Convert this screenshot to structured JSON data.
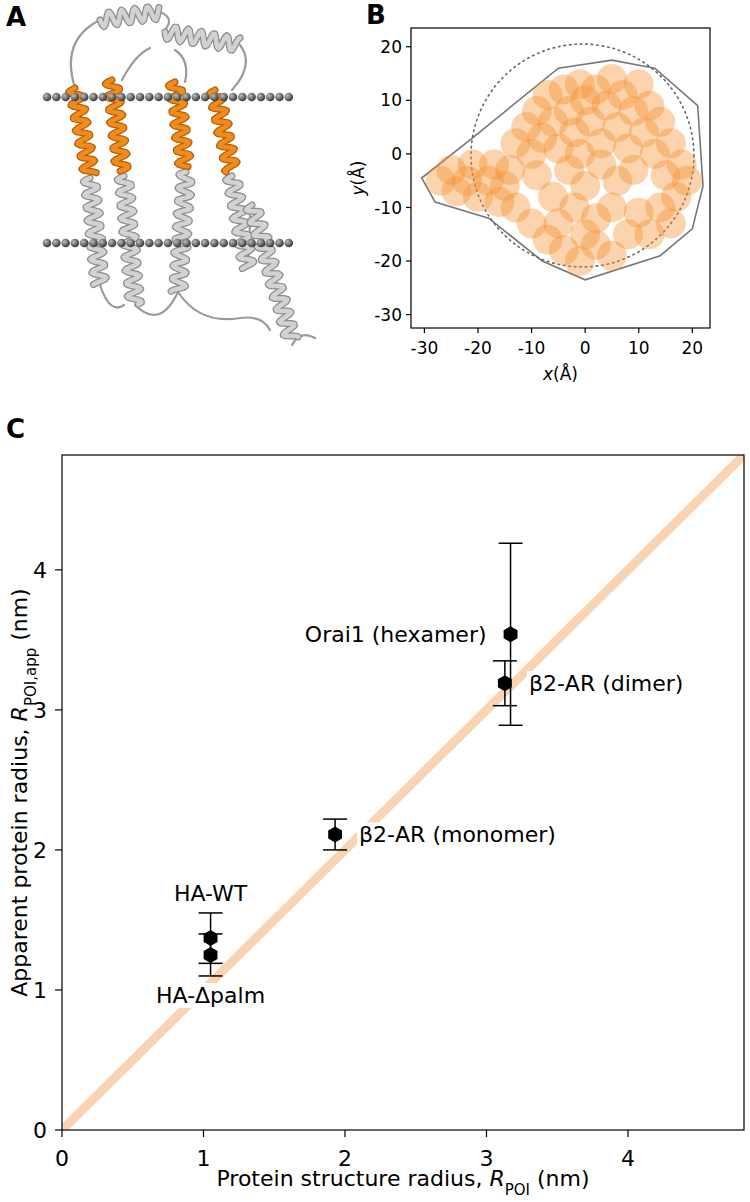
{
  "chart_data": [
    {
      "type": "structure",
      "panel_label": "A"
    },
    {
      "type": "scatter",
      "panel_label": "B",
      "x_label": {
        "var": "x",
        "unit": "(Å)"
      },
      "y_label": {
        "var": "y",
        "unit": "(Å)"
      },
      "xlim": [
        -32.5,
        23.3
      ],
      "ylim": [
        -32.5,
        23.5
      ],
      "xticks": [
        -30,
        -20,
        -10,
        0,
        10,
        20
      ],
      "yticks": [
        -30,
        -20,
        -10,
        0,
        10,
        20
      ],
      "grid": false,
      "marker": "circle",
      "color": "#f5922f",
      "point_radius": 2.8,
      "x": [
        -27,
        -25,
        -24,
        -22,
        -21,
        -20,
        -18,
        -17,
        -16,
        -15,
        -14,
        -13,
        -13,
        -11,
        -10,
        -9,
        -8,
        -7,
        -6,
        -5,
        -4,
        -3,
        -2,
        -1,
        0,
        1,
        2,
        3,
        4,
        5,
        6,
        7,
        8,
        9,
        10,
        11,
        12,
        13,
        14,
        15,
        16,
        17,
        18,
        19,
        14,
        16,
        12,
        -9,
        -6,
        -3,
        0,
        3,
        6,
        9,
        -1,
        5,
        2,
        -2,
        -10,
        -7,
        -4,
        -1,
        2,
        5,
        8,
        10,
        -5,
        0
      ],
      "values": [
        -5,
        -3,
        -7,
        -5,
        -2,
        -8,
        -5,
        -2,
        -9,
        -6,
        -3,
        -10,
        2,
        5,
        0,
        8,
        3,
        11,
        6,
        1,
        12,
        8,
        4,
        13,
        10,
        6,
        12,
        2,
        9,
        14,
        5,
        11,
        1,
        8,
        13,
        4,
        9,
        0,
        6,
        -4,
        2,
        -8,
        -2,
        -5,
        -10,
        -13,
        -15,
        -4,
        -8,
        -3,
        -6,
        -2,
        -5,
        -3,
        0,
        -10,
        -12,
        -10,
        -13,
        -16,
        -18,
        -20,
        -17,
        -19,
        -15,
        -11,
        -13,
        -15
      ],
      "hull": {
        "x": [
          -30.5,
          -21,
          -5,
          5,
          13,
          21,
          22,
          20,
          14,
          0,
          -8,
          -18,
          -28
        ],
        "y": [
          -4.5,
          3,
          16,
          17.5,
          16,
          9,
          -6,
          -14,
          -19,
          -23.5,
          -20,
          -12,
          -9
        ],
        "color": "#777777"
      },
      "circle": {
        "center": [
          -0.5,
          -0.3
        ],
        "radius": 20.8,
        "color": "#666666",
        "line_style": "dotted"
      }
    },
    {
      "type": "scatter",
      "panel_label": "C",
      "x_label": {
        "pre": "Protein structure radius, ",
        "sym": "R",
        "sub": "POI",
        "post": " (nm)"
      },
      "y_label": {
        "pre": "Apparent protein radius, ",
        "sym": "R",
        "sub": "POI,app",
        "post": " (nm)"
      },
      "xlim": [
        0,
        4.82
      ],
      "ylim": [
        0,
        4.82
      ],
      "xticks": [
        0,
        1,
        2,
        3,
        4
      ],
      "yticks": [
        0,
        1,
        2,
        3,
        4
      ],
      "grid": false,
      "marker": "hexagon",
      "color": "#000000",
      "x": [
        1.05,
        1.05,
        1.93,
        3.13,
        3.17
      ],
      "values": [
        1.37,
        1.25,
        2.11,
        3.19,
        3.54
      ],
      "errors": [
        0.18,
        0.15,
        0.11,
        0.16,
        0.65
      ],
      "point_labels": [
        "HA-WT",
        "HA-Δpalm",
        "β2-AR (monomer)",
        "β2-AR (dimer)",
        "Orai1 (hexamer)"
      ],
      "reference_line": {
        "x": [
          0,
          4.82
        ],
        "y": [
          0,
          4.82
        ],
        "color": "#f9cda4"
      }
    }
  ]
}
